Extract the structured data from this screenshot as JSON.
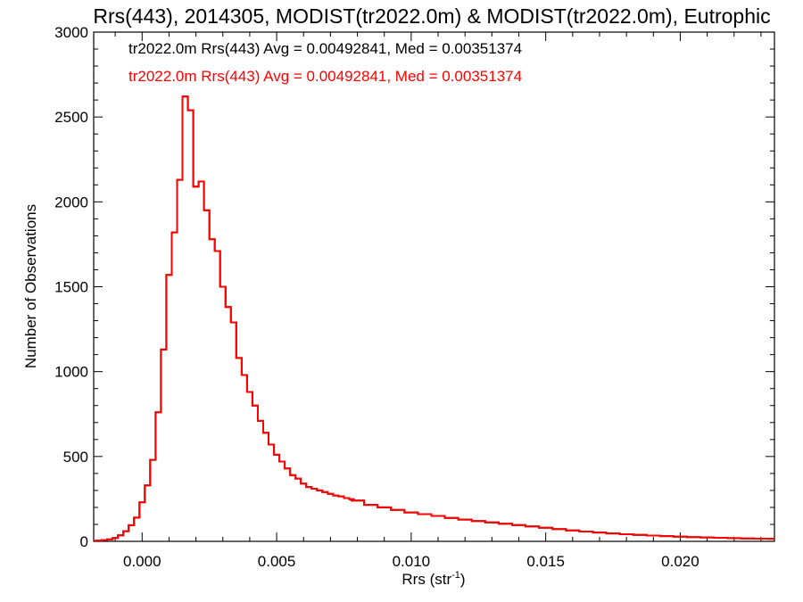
{
  "chart_data": {
    "type": "line",
    "title": "Rrs(443), 2014305, MODIST(tr2022.0m) & MODIST(tr2022.0m), Eutrophic",
    "xlabel_main": "Rrs (str",
    "xlabel_sup": "-1",
    "xlabel_close": ")",
    "ylabel": "Number of Observations",
    "xlim": [
      -0.0018,
      0.0235
    ],
    "ylim": [
      0,
      3000
    ],
    "x_ticks": [
      {
        "value": 0.0,
        "label": "0.000"
      },
      {
        "value": 0.005,
        "label": "0.005"
      },
      {
        "value": 0.01,
        "label": "0.010"
      },
      {
        "value": 0.015,
        "label": "0.015"
      },
      {
        "value": 0.02,
        "label": "0.020"
      }
    ],
    "y_ticks": [
      {
        "value": 0,
        "label": "0"
      },
      {
        "value": 500,
        "label": "500"
      },
      {
        "value": 1000,
        "label": "1000"
      },
      {
        "value": 1500,
        "label": "1500"
      },
      {
        "value": 2000,
        "label": "2000"
      },
      {
        "value": 2500,
        "label": "2500"
      },
      {
        "value": 3000,
        "label": "3000"
      }
    ],
    "grid": false,
    "legend_position": "top-left",
    "series": [
      {
        "name": "tr2022.0m Rrs(443) Avg = 0.00492841, Med = 0.00351374",
        "color": "#000000"
      },
      {
        "name": "tr2022.0m Rrs(443) Avg = 0.00492841, Med = 0.00351374",
        "color": "#ff0000"
      }
    ],
    "bin_width": 0.0002,
    "x": [
      -0.0016,
      -0.0014,
      -0.0012,
      -0.001,
      -0.0008,
      -0.0006,
      -0.0004,
      -0.0002,
      0.0,
      0.0002,
      0.0004,
      0.0006,
      0.0008,
      0.001,
      0.0012,
      0.0014,
      0.0016,
      0.0018,
      0.002,
      0.0022,
      0.0024,
      0.0026,
      0.0028,
      0.003,
      0.0032,
      0.0034,
      0.0036,
      0.0038,
      0.004,
      0.0042,
      0.0044,
      0.0046,
      0.0048,
      0.005,
      0.0052,
      0.0054,
      0.0056,
      0.0058,
      0.006,
      0.0062,
      0.0064,
      0.0066,
      0.0068,
      0.007,
      0.0072,
      0.0074,
      0.0076,
      0.0078,
      0.008,
      0.0085,
      0.009,
      0.0095,
      0.01,
      0.0105,
      0.011,
      0.0115,
      0.012,
      0.0125,
      0.013,
      0.0135,
      0.014,
      0.0145,
      0.015,
      0.0155,
      0.016,
      0.0165,
      0.017,
      0.0175,
      0.018,
      0.0185,
      0.019,
      0.0195,
      0.02,
      0.0205,
      0.021,
      0.0215,
      0.022,
      0.0225,
      0.023,
      0.0235
    ],
    "values": [
      5,
      8,
      12,
      20,
      35,
      60,
      95,
      140,
      230,
      330,
      480,
      760,
      1130,
      1570,
      1820,
      2130,
      2620,
      2540,
      2090,
      2120,
      1950,
      1780,
      1710,
      1500,
      1380,
      1290,
      1080,
      980,
      880,
      800,
      710,
      640,
      570,
      510,
      470,
      430,
      390,
      370,
      340,
      320,
      310,
      300,
      290,
      280,
      270,
      265,
      255,
      248,
      240,
      215,
      200,
      185,
      170,
      160,
      150,
      138,
      128,
      120,
      112,
      104,
      96,
      88,
      80,
      72,
      64,
      58,
      52,
      47,
      42,
      38,
      34,
      31,
      28,
      25,
      23,
      21,
      19,
      17,
      16,
      15
    ]
  }
}
